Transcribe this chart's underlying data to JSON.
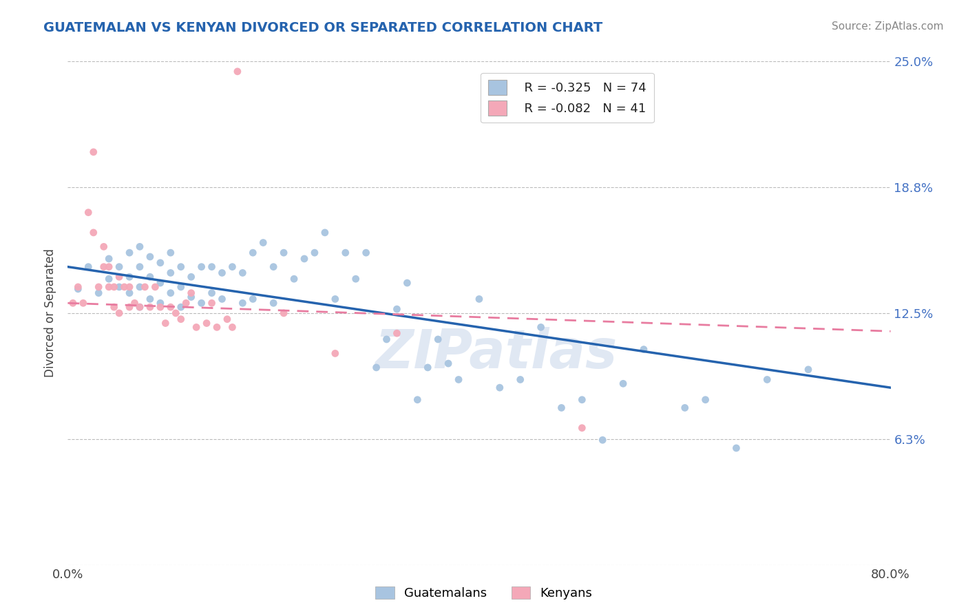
{
  "title": "GUATEMALAN VS KENYAN DIVORCED OR SEPARATED CORRELATION CHART",
  "source": "Source: ZipAtlas.com",
  "ylabel": "Divorced or Separated",
  "xmin": 0.0,
  "xmax": 0.8,
  "ymin": 0.0,
  "ymax": 0.25,
  "yticks": [
    0.0,
    0.0625,
    0.125,
    0.1875,
    0.25
  ],
  "ytick_labels": [
    "",
    "6.3%",
    "12.5%",
    "18.8%",
    "25.0%"
  ],
  "xtick_labels": [
    "0.0%",
    "80.0%"
  ],
  "legend_r_guatemalan": "-0.325",
  "legend_n_guatemalan": "74",
  "legend_r_kenyan": "-0.082",
  "legend_n_kenyan": "41",
  "guatemalan_color": "#a8c4e0",
  "kenyan_color": "#f4a8b8",
  "line_guatemalan_color": "#2563ae",
  "line_kenyan_color": "#e87ca0",
  "guatemalan_x": [
    0.01,
    0.02,
    0.03,
    0.04,
    0.04,
    0.05,
    0.05,
    0.06,
    0.06,
    0.06,
    0.07,
    0.07,
    0.07,
    0.07,
    0.08,
    0.08,
    0.08,
    0.09,
    0.09,
    0.09,
    0.1,
    0.1,
    0.1,
    0.11,
    0.11,
    0.11,
    0.12,
    0.12,
    0.13,
    0.13,
    0.14,
    0.14,
    0.15,
    0.15,
    0.16,
    0.17,
    0.17,
    0.18,
    0.18,
    0.19,
    0.2,
    0.2,
    0.21,
    0.22,
    0.23,
    0.24,
    0.25,
    0.26,
    0.27,
    0.28,
    0.29,
    0.3,
    0.31,
    0.32,
    0.33,
    0.34,
    0.35,
    0.36,
    0.37,
    0.38,
    0.4,
    0.42,
    0.44,
    0.46,
    0.48,
    0.5,
    0.52,
    0.54,
    0.56,
    0.6,
    0.62,
    0.65,
    0.68,
    0.72
  ],
  "guatemalan_y": [
    0.137,
    0.148,
    0.135,
    0.142,
    0.152,
    0.138,
    0.148,
    0.135,
    0.143,
    0.155,
    0.128,
    0.138,
    0.148,
    0.158,
    0.132,
    0.143,
    0.153,
    0.13,
    0.14,
    0.15,
    0.135,
    0.145,
    0.155,
    0.128,
    0.138,
    0.148,
    0.133,
    0.143,
    0.13,
    0.148,
    0.135,
    0.148,
    0.132,
    0.145,
    0.148,
    0.13,
    0.145,
    0.132,
    0.155,
    0.16,
    0.13,
    0.148,
    0.155,
    0.142,
    0.152,
    0.155,
    0.165,
    0.132,
    0.155,
    0.142,
    0.155,
    0.098,
    0.112,
    0.127,
    0.14,
    0.082,
    0.098,
    0.112,
    0.1,
    0.092,
    0.132,
    0.088,
    0.092,
    0.118,
    0.078,
    0.082,
    0.062,
    0.09,
    0.107,
    0.078,
    0.082,
    0.058,
    0.092,
    0.097
  ],
  "kenyan_x": [
    0.005,
    0.01,
    0.015,
    0.02,
    0.025,
    0.025,
    0.03,
    0.035,
    0.035,
    0.04,
    0.04,
    0.045,
    0.045,
    0.05,
    0.05,
    0.055,
    0.06,
    0.06,
    0.065,
    0.07,
    0.075,
    0.08,
    0.085,
    0.09,
    0.095,
    0.1,
    0.105,
    0.11,
    0.115,
    0.12,
    0.125,
    0.135,
    0.14,
    0.145,
    0.155,
    0.16,
    0.165,
    0.21,
    0.26,
    0.32,
    0.5
  ],
  "kenyan_y": [
    0.13,
    0.138,
    0.13,
    0.175,
    0.165,
    0.205,
    0.138,
    0.158,
    0.148,
    0.138,
    0.148,
    0.128,
    0.138,
    0.125,
    0.143,
    0.138,
    0.128,
    0.138,
    0.13,
    0.128,
    0.138,
    0.128,
    0.138,
    0.128,
    0.12,
    0.128,
    0.125,
    0.122,
    0.13,
    0.135,
    0.118,
    0.12,
    0.13,
    0.118,
    0.122,
    0.118,
    0.245,
    0.125,
    0.105,
    0.115,
    0.068
  ],
  "guat_line_x0": 0.0,
  "guat_line_y0": 0.148,
  "guat_line_x1": 0.8,
  "guat_line_y1": 0.088,
  "ken_line_x0": 0.0,
  "ken_line_y0": 0.13,
  "ken_line_x1": 0.8,
  "ken_line_y1": 0.116
}
